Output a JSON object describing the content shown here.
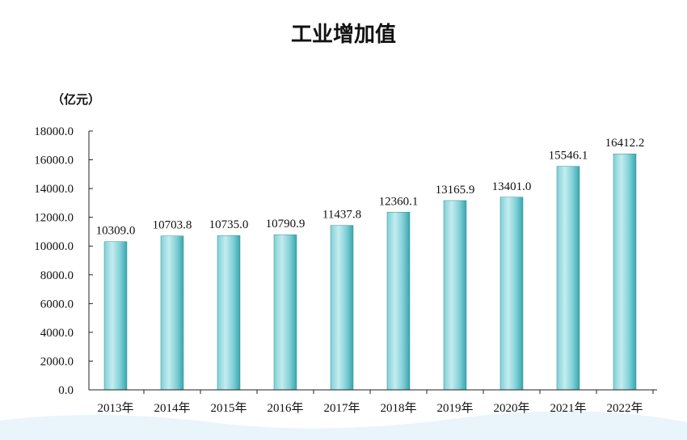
{
  "chart_data": {
    "type": "bar",
    "title": "工业增加值",
    "unit_label": "（亿元）",
    "categories": [
      "2013年",
      "2014年",
      "2015年",
      "2016年",
      "2017年",
      "2018年",
      "2019年",
      "2020年",
      "2021年",
      "2022年"
    ],
    "values": [
      10309.0,
      10703.8,
      10735.0,
      10790.9,
      11437.8,
      12360.1,
      13165.9,
      13401.0,
      15546.1,
      16412.2
    ],
    "value_labels": [
      "10309.0",
      "10703.8",
      "10735.0",
      "10790.9",
      "11437.8",
      "12360.1",
      "13165.9",
      "13401.0",
      "15546.1",
      "16412.2"
    ],
    "y_ticks": [
      "0.0",
      "2000.0",
      "4000.0",
      "6000.0",
      "8000.0",
      "10000.0",
      "12000.0",
      "14000.0",
      "16000.0",
      "18000.0"
    ],
    "ylim": [
      0,
      18000
    ],
    "grid": false,
    "colors": {
      "bar_light": "#c4ecef",
      "bar_mid": "#7fd0d6",
      "bar_dark": "#3aa5ae",
      "bar_edge": "#2e8f98",
      "axis": "#222222",
      "footer_wave": "#eaf4fb"
    }
  }
}
